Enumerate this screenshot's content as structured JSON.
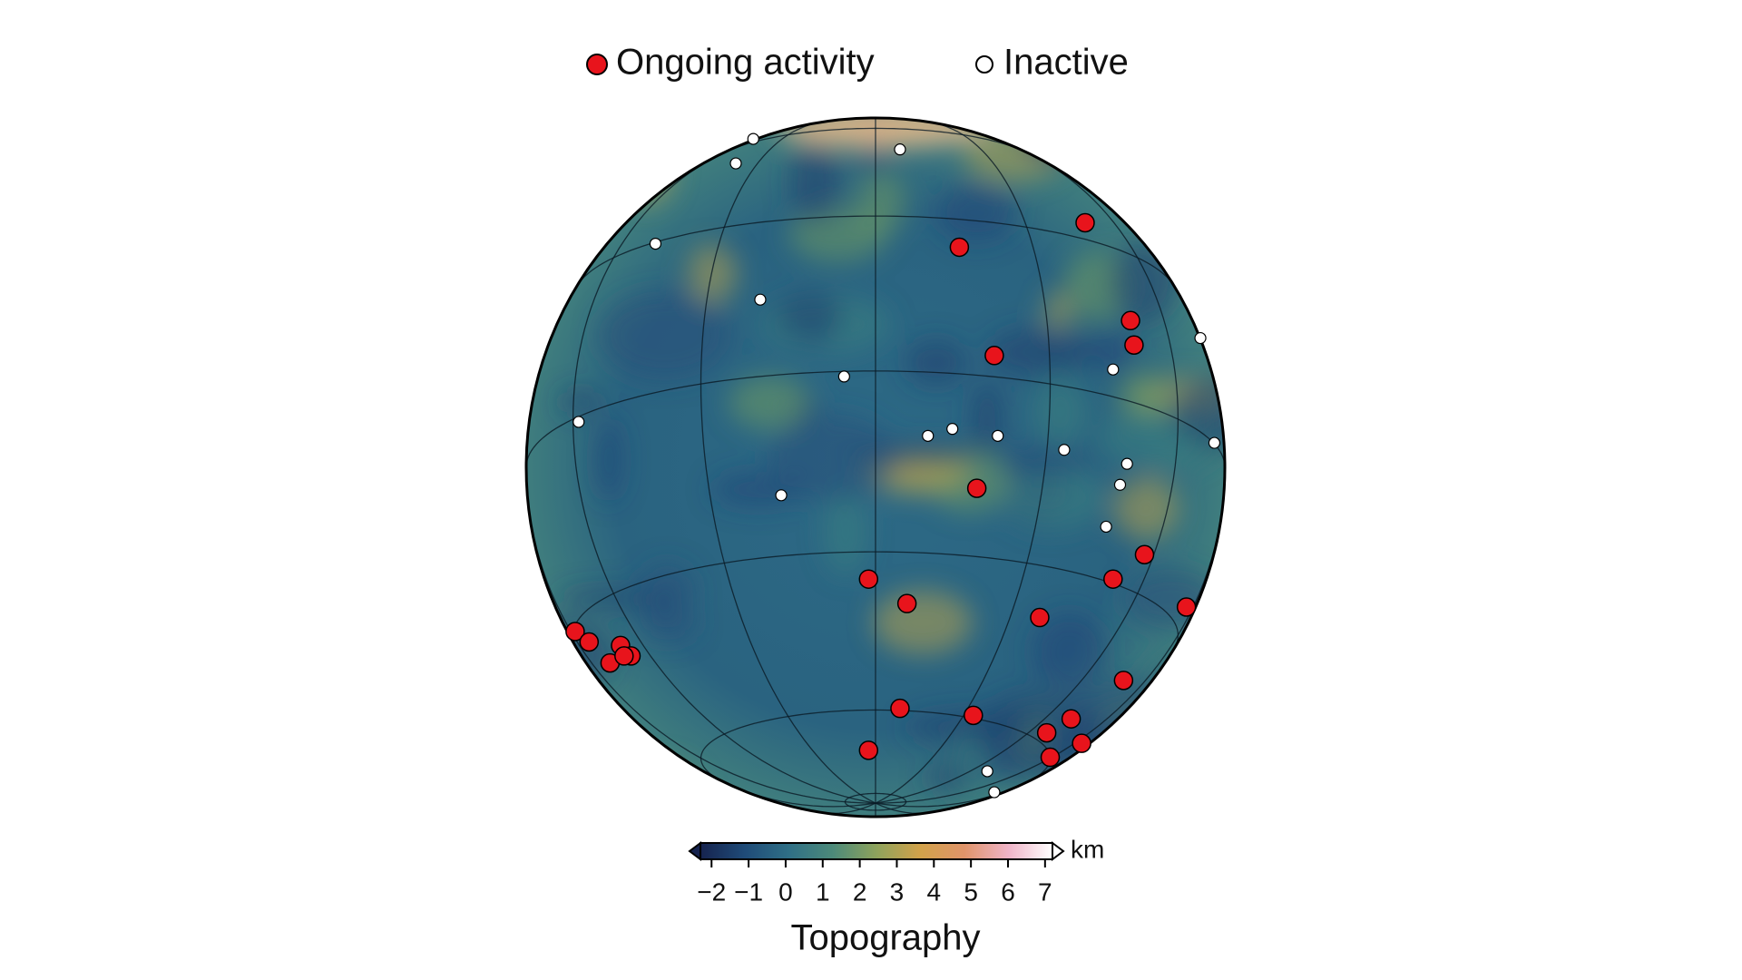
{
  "chart_data": {
    "type": "orthographic-map",
    "center_lat": -16,
    "graticule_step": 30,
    "xlim": [
      -1,
      1
    ],
    "ylim": [
      -1,
      1
    ],
    "series": [
      {
        "name": "Ongoing activity",
        "color": "#e8141c",
        "x": [
          0.24,
          0.6,
          0.73,
          0.74,
          0.34,
          0.29,
          -0.02,
          0.09,
          0.77,
          0.68,
          0.89,
          0.47,
          0.71,
          0.07,
          0.28,
          0.56,
          0.49,
          0.59,
          0.5,
          -0.02,
          -0.86,
          -0.82,
          -0.73,
          -0.76,
          -0.7,
          -0.72
        ],
        "y": [
          0.63,
          0.7,
          0.42,
          0.35,
          0.32,
          -0.06,
          -0.32,
          -0.39,
          -0.25,
          -0.32,
          -0.4,
          -0.43,
          -0.61,
          -0.69,
          -0.71,
          -0.72,
          -0.76,
          -0.79,
          -0.83,
          -0.81,
          -0.47,
          -0.5,
          -0.51,
          -0.56,
          -0.54,
          -0.54
        ]
      },
      {
        "name": "Inactive",
        "color": "#ffffff",
        "x": [
          -0.35,
          0.07,
          -0.4,
          -0.63,
          -0.33,
          -0.09,
          -0.85,
          0.93,
          0.68,
          0.15,
          0.22,
          0.35,
          0.54,
          0.97,
          0.72,
          0.7,
          -0.27,
          0.66,
          0.32,
          0.34
        ],
        "y": [
          0.94,
          0.91,
          0.87,
          0.64,
          0.48,
          0.26,
          0.13,
          0.37,
          0.28,
          0.09,
          0.11,
          0.09,
          0.05,
          0.07,
          0.01,
          -0.05,
          -0.08,
          -0.17,
          -0.87,
          -0.93
        ]
      }
    ],
    "colorbar": {
      "label": "Topography",
      "unit": "km",
      "colormap": [
        "#16234e",
        "#1f4b78",
        "#2f6f86",
        "#4c8a7a",
        "#8ea35c",
        "#d2a24a",
        "#e0946a",
        "#f0b4c8",
        "#ffffff"
      ],
      "xlim": [
        -2.3,
        7.2
      ],
      "xticks": [
        {
          "value": -2,
          "label": "−2"
        },
        {
          "value": -1,
          "label": "−1"
        },
        0,
        1,
        2,
        3,
        4,
        5,
        6,
        7
      ]
    }
  }
}
